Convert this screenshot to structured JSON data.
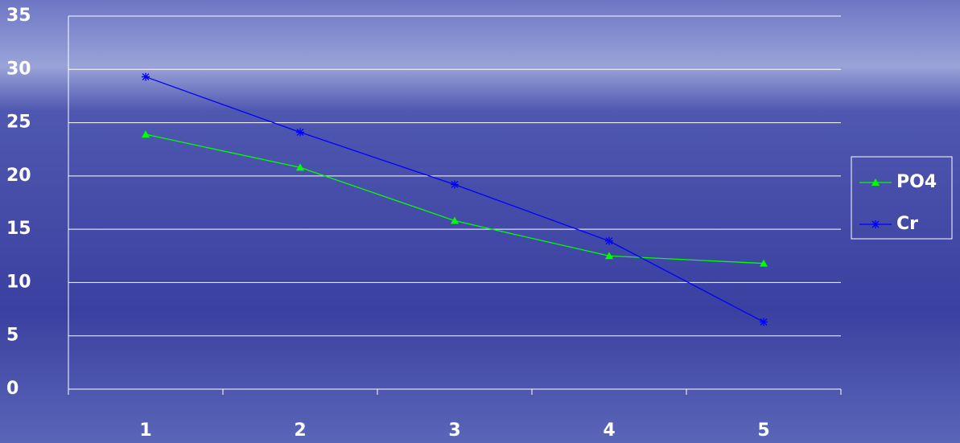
{
  "chart_data": {
    "type": "line",
    "categories": [
      "1",
      "2",
      "3",
      "4",
      "5"
    ],
    "series": [
      {
        "name": "PO4",
        "color": "#00ff00",
        "marker": "triangle",
        "values": [
          23.9,
          20.8,
          15.8,
          12.5,
          11.8
        ]
      },
      {
        "name": "Cr",
        "color": "#0000ff",
        "marker": "asterisk",
        "values": [
          29.3,
          24.1,
          19.2,
          13.9,
          6.3
        ]
      }
    ],
    "ylim": [
      0,
      35
    ],
    "yticks": [
      0,
      5,
      10,
      15,
      20,
      25,
      30,
      35
    ],
    "grid": true,
    "legend": "right"
  }
}
